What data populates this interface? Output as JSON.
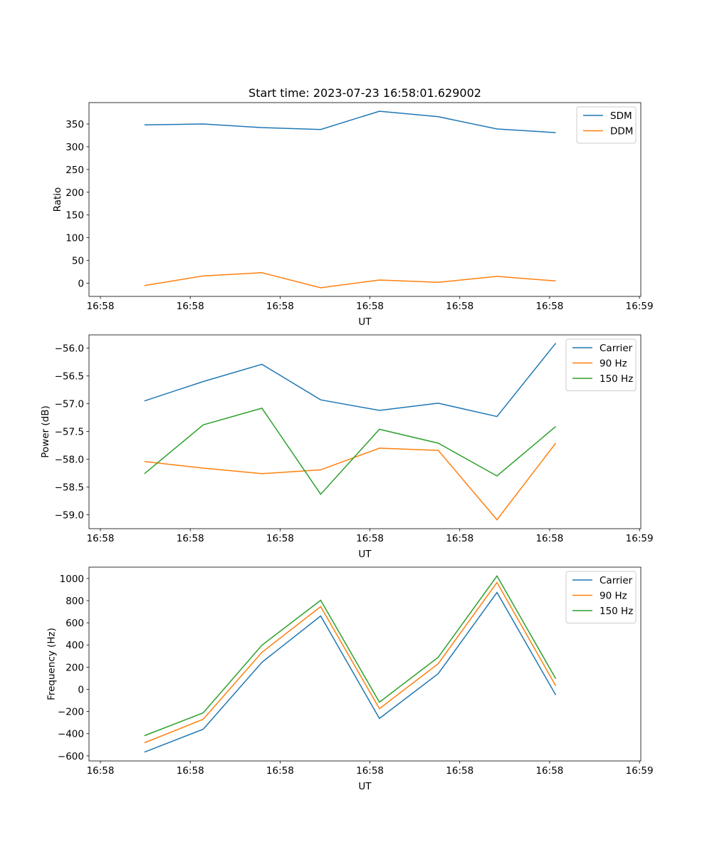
{
  "chart_data": [
    {
      "type": "line",
      "title": "Start time: 2023-07-23 16:58:01.629002",
      "xlabel": "UT",
      "ylabel": "Ratio",
      "x_seconds_after_1658": [
        4.9,
        11.44,
        17.98,
        24.52,
        31.06,
        37.6,
        44.14,
        50.68
      ],
      "xlim": [
        -1.27,
        60.15
      ],
      "xticks": [
        0,
        10,
        20,
        30,
        40,
        50,
        60
      ],
      "xtick_labels": [
        "16:58",
        "16:58",
        "16:58",
        "16:58",
        "16:58",
        "16:58",
        "16:59"
      ],
      "ylim": [
        -29,
        397
      ],
      "yticks": [
        0,
        50,
        100,
        150,
        200,
        250,
        300,
        350
      ],
      "ytick_labels": [
        "0",
        "50",
        "100",
        "150",
        "200",
        "250",
        "300",
        "350"
      ],
      "legend": "top-right",
      "series": [
        {
          "name": "SDM",
          "color": "#1f77b4",
          "values": [
            348,
            350,
            342,
            338,
            378,
            366,
            339,
            331
          ]
        },
        {
          "name": "DDM",
          "color": "#ff7f0e",
          "values": [
            -5,
            16,
            23,
            -10,
            7,
            2,
            15,
            5
          ]
        }
      ]
    },
    {
      "type": "line",
      "title": "",
      "xlabel": "UT",
      "ylabel": "Power (dB)",
      "x_seconds_after_1658": [
        4.9,
        11.44,
        17.98,
        24.52,
        31.06,
        37.6,
        44.14,
        50.68
      ],
      "xlim": [
        -1.27,
        60.15
      ],
      "xticks": [
        0,
        10,
        20,
        30,
        40,
        50,
        60
      ],
      "xtick_labels": [
        "16:58",
        "16:58",
        "16:58",
        "16:58",
        "16:58",
        "16:58",
        "16:59"
      ],
      "ylim": [
        -59.25,
        -55.76
      ],
      "yticks": [
        -59.0,
        -58.5,
        -58.0,
        -57.5,
        -57.0,
        -56.5,
        -56.0
      ],
      "ytick_labels": [
        "−59.0",
        "−58.5",
        "−58.0",
        "−57.5",
        "−57.0",
        "−56.5",
        "−56.0"
      ],
      "legend": "top-right",
      "series": [
        {
          "name": "Carrier",
          "color": "#1f77b4",
          "values": [
            -56.95,
            -56.6,
            -56.29,
            -56.93,
            -57.12,
            -56.99,
            -57.23,
            -55.91
          ]
        },
        {
          "name": "90 Hz",
          "color": "#ff7f0e",
          "values": [
            -58.04,
            -58.16,
            -58.26,
            -58.19,
            -57.8,
            -57.84,
            -59.09,
            -57.71
          ]
        },
        {
          "name": "150 Hz",
          "color": "#2ca02c",
          "values": [
            -58.26,
            -57.38,
            -57.08,
            -58.63,
            -57.46,
            -57.71,
            -58.3,
            -57.41
          ]
        }
      ]
    },
    {
      "type": "line",
      "title": "",
      "xlabel": "UT",
      "ylabel": "Frequency (Hz)",
      "x_seconds_after_1658": [
        4.9,
        11.44,
        17.98,
        24.52,
        31.06,
        37.6,
        44.14,
        50.68
      ],
      "xlim": [
        -1.27,
        60.15
      ],
      "xticks": [
        0,
        10,
        20,
        30,
        40,
        50,
        60
      ],
      "xtick_labels": [
        "16:58",
        "16:58",
        "16:58",
        "16:58",
        "16:58",
        "16:58",
        "16:59"
      ],
      "ylim": [
        -646,
        1102
      ],
      "yticks": [
        -600,
        -400,
        -200,
        0,
        200,
        400,
        600,
        800,
        1000
      ],
      "ytick_labels": [
        "−600",
        "−400",
        "−200",
        "0",
        "200",
        "400",
        "600",
        "800",
        "1000"
      ],
      "legend": "top-right",
      "series": [
        {
          "name": "Carrier",
          "color": "#1f77b4",
          "values": [
            -566,
            -360,
            244,
            662,
            -263,
            141,
            874,
            -51
          ]
        },
        {
          "name": "90 Hz",
          "color": "#ff7f0e",
          "values": [
            -482,
            -270,
            334,
            746,
            -174,
            231,
            964,
            32
          ]
        },
        {
          "name": "150 Hz",
          "color": "#2ca02c",
          "values": [
            -418,
            -212,
            398,
            803,
            -116,
            289,
            1022,
            96
          ]
        }
      ]
    }
  ]
}
